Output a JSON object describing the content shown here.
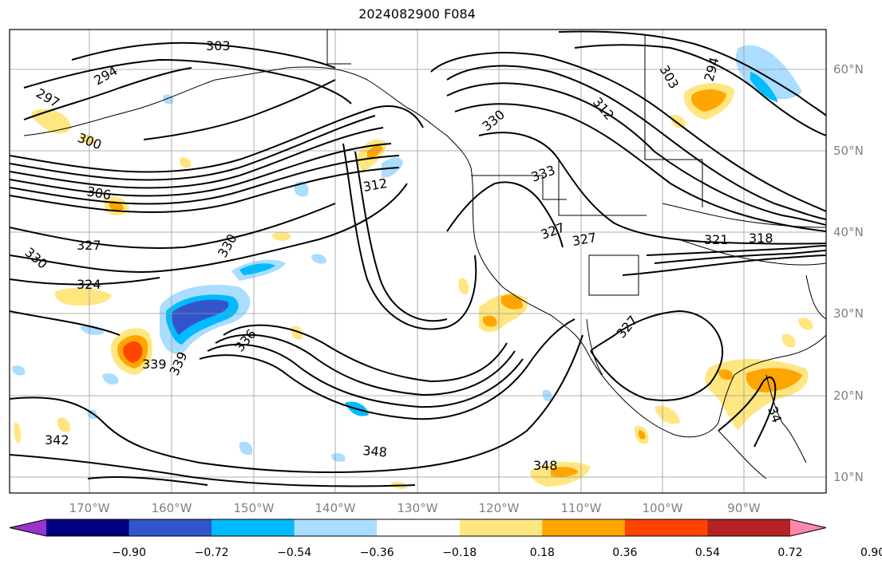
{
  "title": "2024082900 F084",
  "lon_ticks": [
    "170°W",
    "160°W",
    "150°W",
    "140°W",
    "130°W",
    "120°W",
    "110°W",
    "100°W",
    "90°W"
  ],
  "lat_ticks": [
    "60°N",
    "50°N",
    "40°N",
    "30°N",
    "20°N",
    "10°N"
  ],
  "contour_labels": [
    {
      "text": "303"
    },
    {
      "text": "294"
    },
    {
      "text": "297"
    },
    {
      "text": "300"
    },
    {
      "text": "306"
    },
    {
      "text": "312"
    },
    {
      "text": "330"
    },
    {
      "text": "333"
    },
    {
      "text": "327"
    },
    {
      "text": "327"
    },
    {
      "text": "330"
    },
    {
      "text": "327"
    },
    {
      "text": "324"
    },
    {
      "text": "330"
    },
    {
      "text": "336"
    },
    {
      "text": "339"
    },
    {
      "text": "339"
    },
    {
      "text": "342"
    },
    {
      "text": "348"
    },
    {
      "text": "348"
    },
    {
      "text": "312"
    },
    {
      "text": "303"
    },
    {
      "text": "294"
    },
    {
      "text": "321"
    },
    {
      "text": "318"
    },
    {
      "text": "327"
    },
    {
      "text": "34"
    }
  ],
  "colorbar": {
    "colors": [
      "#9933cc",
      "#000080",
      "#3355cc",
      "#00bbff",
      "#aaddff",
      "#ffffff",
      "#ffe680",
      "#ffa500",
      "#ff4400",
      "#b22222",
      "#ff88aa"
    ],
    "labels": [
      "−0.90",
      "−0.72",
      "−0.54",
      "−0.36",
      "−0.18",
      "0.18",
      "0.36",
      "0.54",
      "0.72",
      "0.90"
    ]
  }
}
